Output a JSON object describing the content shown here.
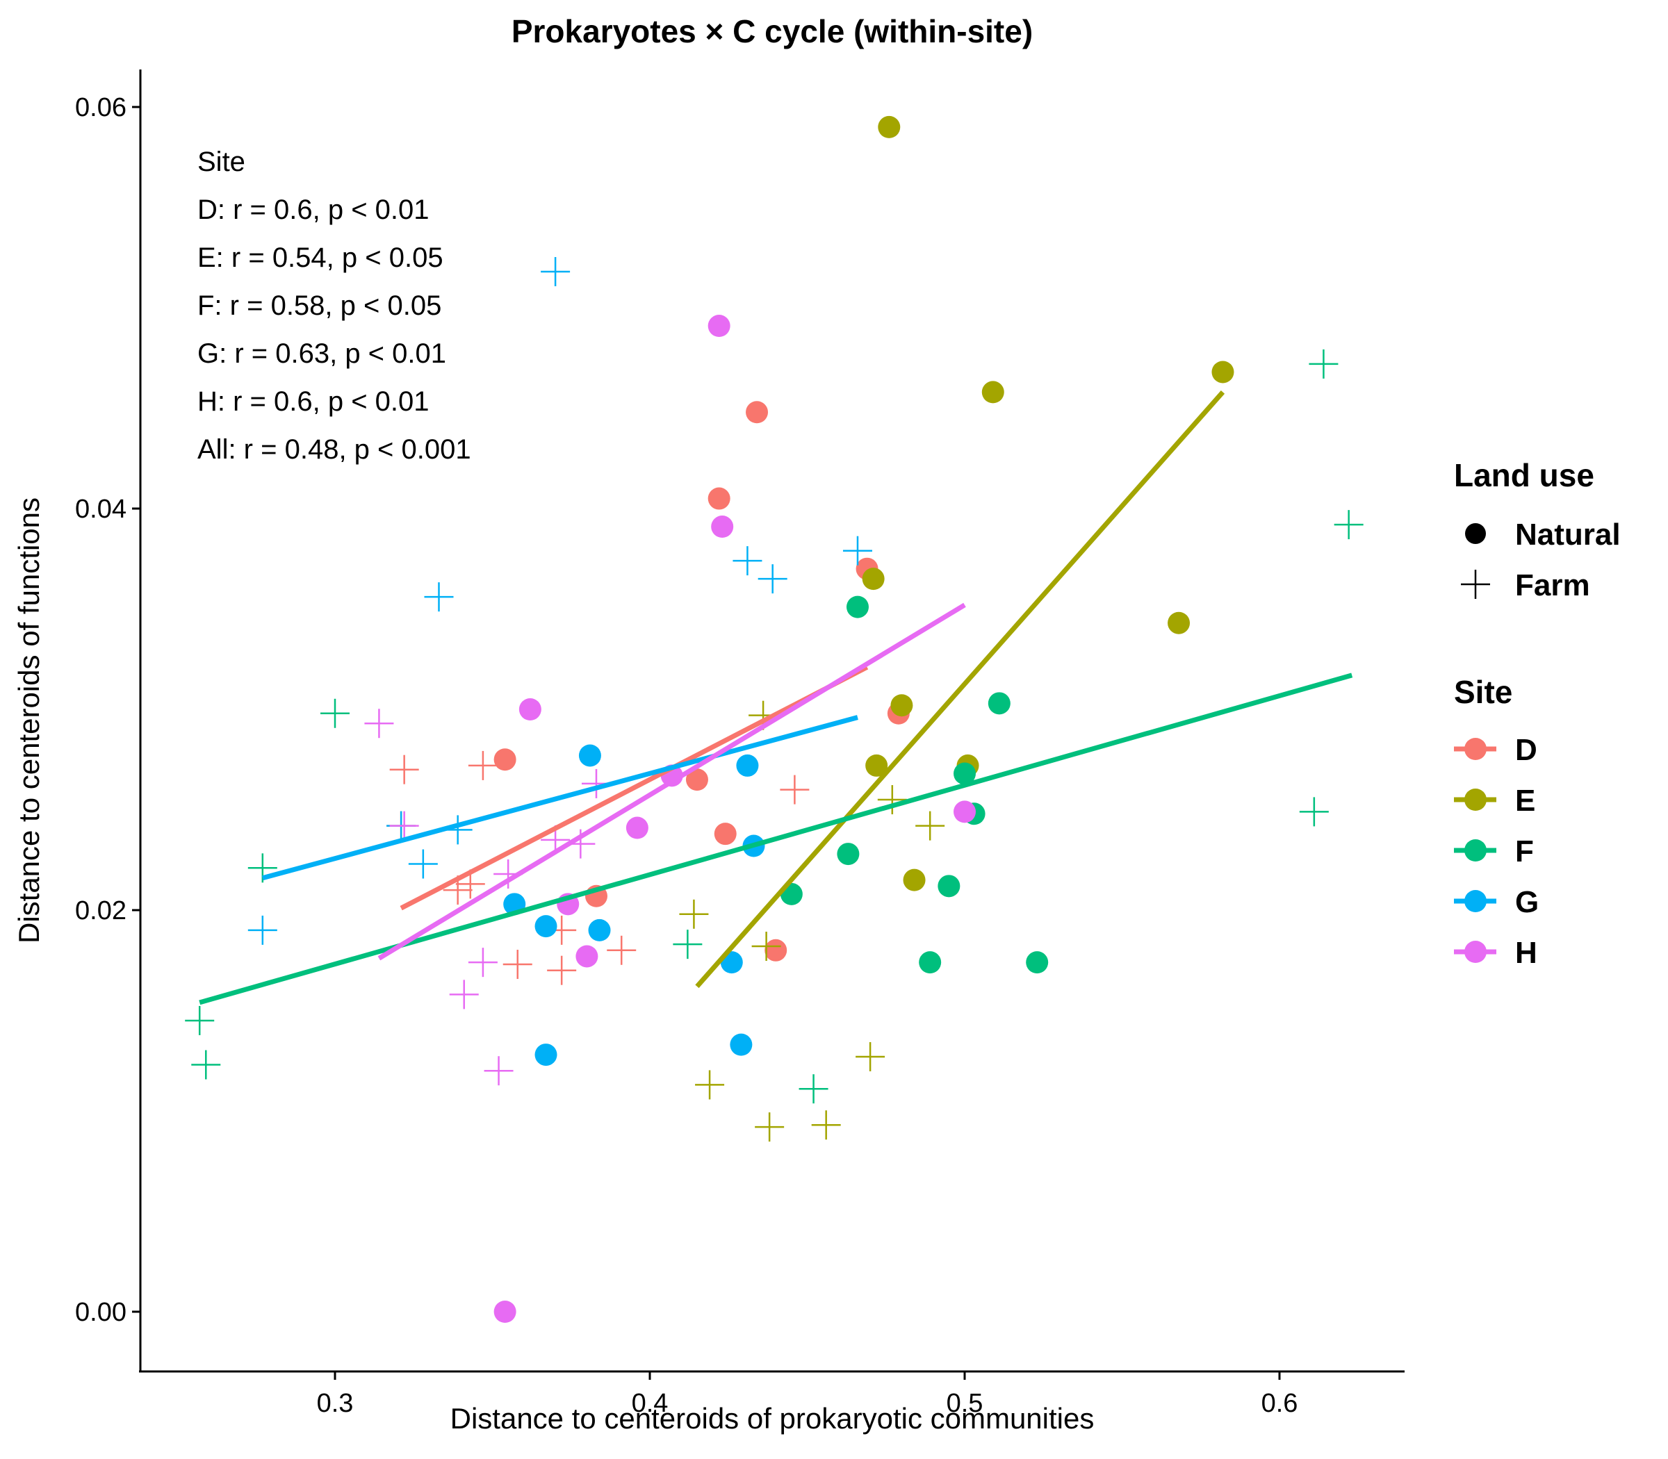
{
  "chart_data": {
    "type": "scatter",
    "title": "Prokaryotes × C cycle (within-site)",
    "xlabel": "Distance to centeroids of prokaryotic communities",
    "ylabel": "Distance to centeroids of functions",
    "xlim": [
      0.24,
      0.64
    ],
    "ylim": [
      -0.003,
      0.062
    ],
    "xticks": [
      0.3,
      0.4,
      0.5,
      0.6
    ],
    "xtick_labels": [
      "0.3",
      "0.4",
      "0.5",
      "0.6"
    ],
    "yticks": [
      0.0,
      0.02,
      0.04,
      0.06
    ],
    "ytick_labels": [
      "0.00",
      "0.02",
      "0.04",
      "0.06"
    ],
    "grid": false,
    "annotation": {
      "lines": [
        "Site",
        "D: r = 0.6, p < 0.01",
        "E: r = 0.54, p < 0.05",
        "F: r = 0.58, p < 0.05",
        "G: r = 0.63, p < 0.01",
        "H: r = 0.6, p < 0.01",
        "All: r = 0.48, p < 0.001"
      ]
    },
    "legend_landuse": {
      "title": "Land use",
      "items": [
        {
          "label": "Natural",
          "shape": "circle"
        },
        {
          "label": "Farm",
          "shape": "plus"
        }
      ]
    },
    "legend_site": {
      "title": "Site",
      "placement": "right"
    },
    "series": [
      {
        "name": "D",
        "color": "#F8766D",
        "natural": [
          [
            0.354,
            0.0275
          ],
          [
            0.415,
            0.0265
          ],
          [
            0.434,
            0.0448
          ],
          [
            0.422,
            0.0405
          ],
          [
            0.469,
            0.037
          ],
          [
            0.479,
            0.0298
          ],
          [
            0.424,
            0.0238
          ],
          [
            0.383,
            0.0207
          ],
          [
            0.44,
            0.018
          ]
        ],
        "farm": [
          [
            0.322,
            0.027
          ],
          [
            0.347,
            0.0272
          ],
          [
            0.446,
            0.026
          ],
          [
            0.321,
            0.0242
          ],
          [
            0.339,
            0.021
          ],
          [
            0.343,
            0.0213
          ],
          [
            0.372,
            0.019
          ],
          [
            0.358,
            0.0173
          ],
          [
            0.372,
            0.017
          ],
          [
            0.391,
            0.018
          ]
        ],
        "fit": [
          [
            0.321,
            0.0201
          ],
          [
            0.469,
            0.0321
          ]
        ]
      },
      {
        "name": "E",
        "color": "#A3A500",
        "natural": [
          [
            0.476,
            0.059
          ],
          [
            0.582,
            0.0468
          ],
          [
            0.509,
            0.0458
          ],
          [
            0.471,
            0.0365
          ],
          [
            0.568,
            0.0343
          ],
          [
            0.48,
            0.0302
          ],
          [
            0.501,
            0.0272
          ],
          [
            0.472,
            0.0272
          ],
          [
            0.484,
            0.0215
          ]
        ],
        "farm": [
          [
            0.436,
            0.0297
          ],
          [
            0.477,
            0.0255
          ],
          [
            0.489,
            0.0242
          ],
          [
            0.414,
            0.0198
          ],
          [
            0.437,
            0.0182
          ],
          [
            0.47,
            0.0127
          ],
          [
            0.419,
            0.0113
          ],
          [
            0.438,
            0.0092
          ],
          [
            0.456,
            0.0093
          ]
        ],
        "fit": [
          [
            0.415,
            0.0162
          ],
          [
            0.582,
            0.0458
          ]
        ]
      },
      {
        "name": "F",
        "color": "#00BF7D",
        "natural": [
          [
            0.466,
            0.0351
          ],
          [
            0.511,
            0.0303
          ],
          [
            0.5,
            0.0268
          ],
          [
            0.503,
            0.0248
          ],
          [
            0.463,
            0.0228
          ],
          [
            0.445,
            0.0208
          ],
          [
            0.495,
            0.0212
          ],
          [
            0.489,
            0.0174
          ],
          [
            0.523,
            0.0174
          ]
        ],
        "farm": [
          [
            0.614,
            0.0472
          ],
          [
            0.622,
            0.0392
          ],
          [
            0.3,
            0.0298
          ],
          [
            0.611,
            0.0249
          ],
          [
            0.277,
            0.0221
          ],
          [
            0.412,
            0.0183
          ],
          [
            0.257,
            0.0145
          ],
          [
            0.259,
            0.0123
          ],
          [
            0.452,
            0.0111
          ]
        ],
        "fit": [
          [
            0.257,
            0.0154
          ],
          [
            0.623,
            0.0317
          ]
        ]
      },
      {
        "name": "G",
        "color": "#00B0F6",
        "natural": [
          [
            0.381,
            0.0277
          ],
          [
            0.431,
            0.0272
          ],
          [
            0.433,
            0.0232
          ],
          [
            0.357,
            0.0203
          ],
          [
            0.367,
            0.0192
          ],
          [
            0.384,
            0.019
          ],
          [
            0.426,
            0.0174
          ],
          [
            0.429,
            0.0133
          ],
          [
            0.367,
            0.0128
          ]
        ],
        "farm": [
          [
            0.37,
            0.0518
          ],
          [
            0.466,
            0.0379
          ],
          [
            0.431,
            0.0374
          ],
          [
            0.439,
            0.0365
          ],
          [
            0.333,
            0.0356
          ],
          [
            0.321,
            0.0242
          ],
          [
            0.339,
            0.024
          ],
          [
            0.328,
            0.0223
          ],
          [
            0.277,
            0.019
          ]
        ],
        "fit": [
          [
            0.277,
            0.0216
          ],
          [
            0.466,
            0.0296
          ]
        ]
      },
      {
        "name": "H",
        "color": "#E76BF3",
        "natural": [
          [
            0.422,
            0.0491
          ],
          [
            0.423,
            0.0391
          ],
          [
            0.362,
            0.03
          ],
          [
            0.407,
            0.0267
          ],
          [
            0.5,
            0.0249
          ],
          [
            0.396,
            0.0241
          ],
          [
            0.374,
            0.0203
          ],
          [
            0.38,
            0.0177
          ],
          [
            0.354,
            0.0
          ]
        ],
        "farm": [
          [
            0.314,
            0.0293
          ],
          [
            0.383,
            0.0263
          ],
          [
            0.37,
            0.0235
          ],
          [
            0.378,
            0.0233
          ],
          [
            0.322,
            0.0242
          ],
          [
            0.355,
            0.0218
          ],
          [
            0.347,
            0.0174
          ],
          [
            0.341,
            0.0158
          ],
          [
            0.352,
            0.012
          ]
        ],
        "fit": [
          [
            0.314,
            0.0176
          ],
          [
            0.5,
            0.0352
          ]
        ]
      }
    ]
  }
}
